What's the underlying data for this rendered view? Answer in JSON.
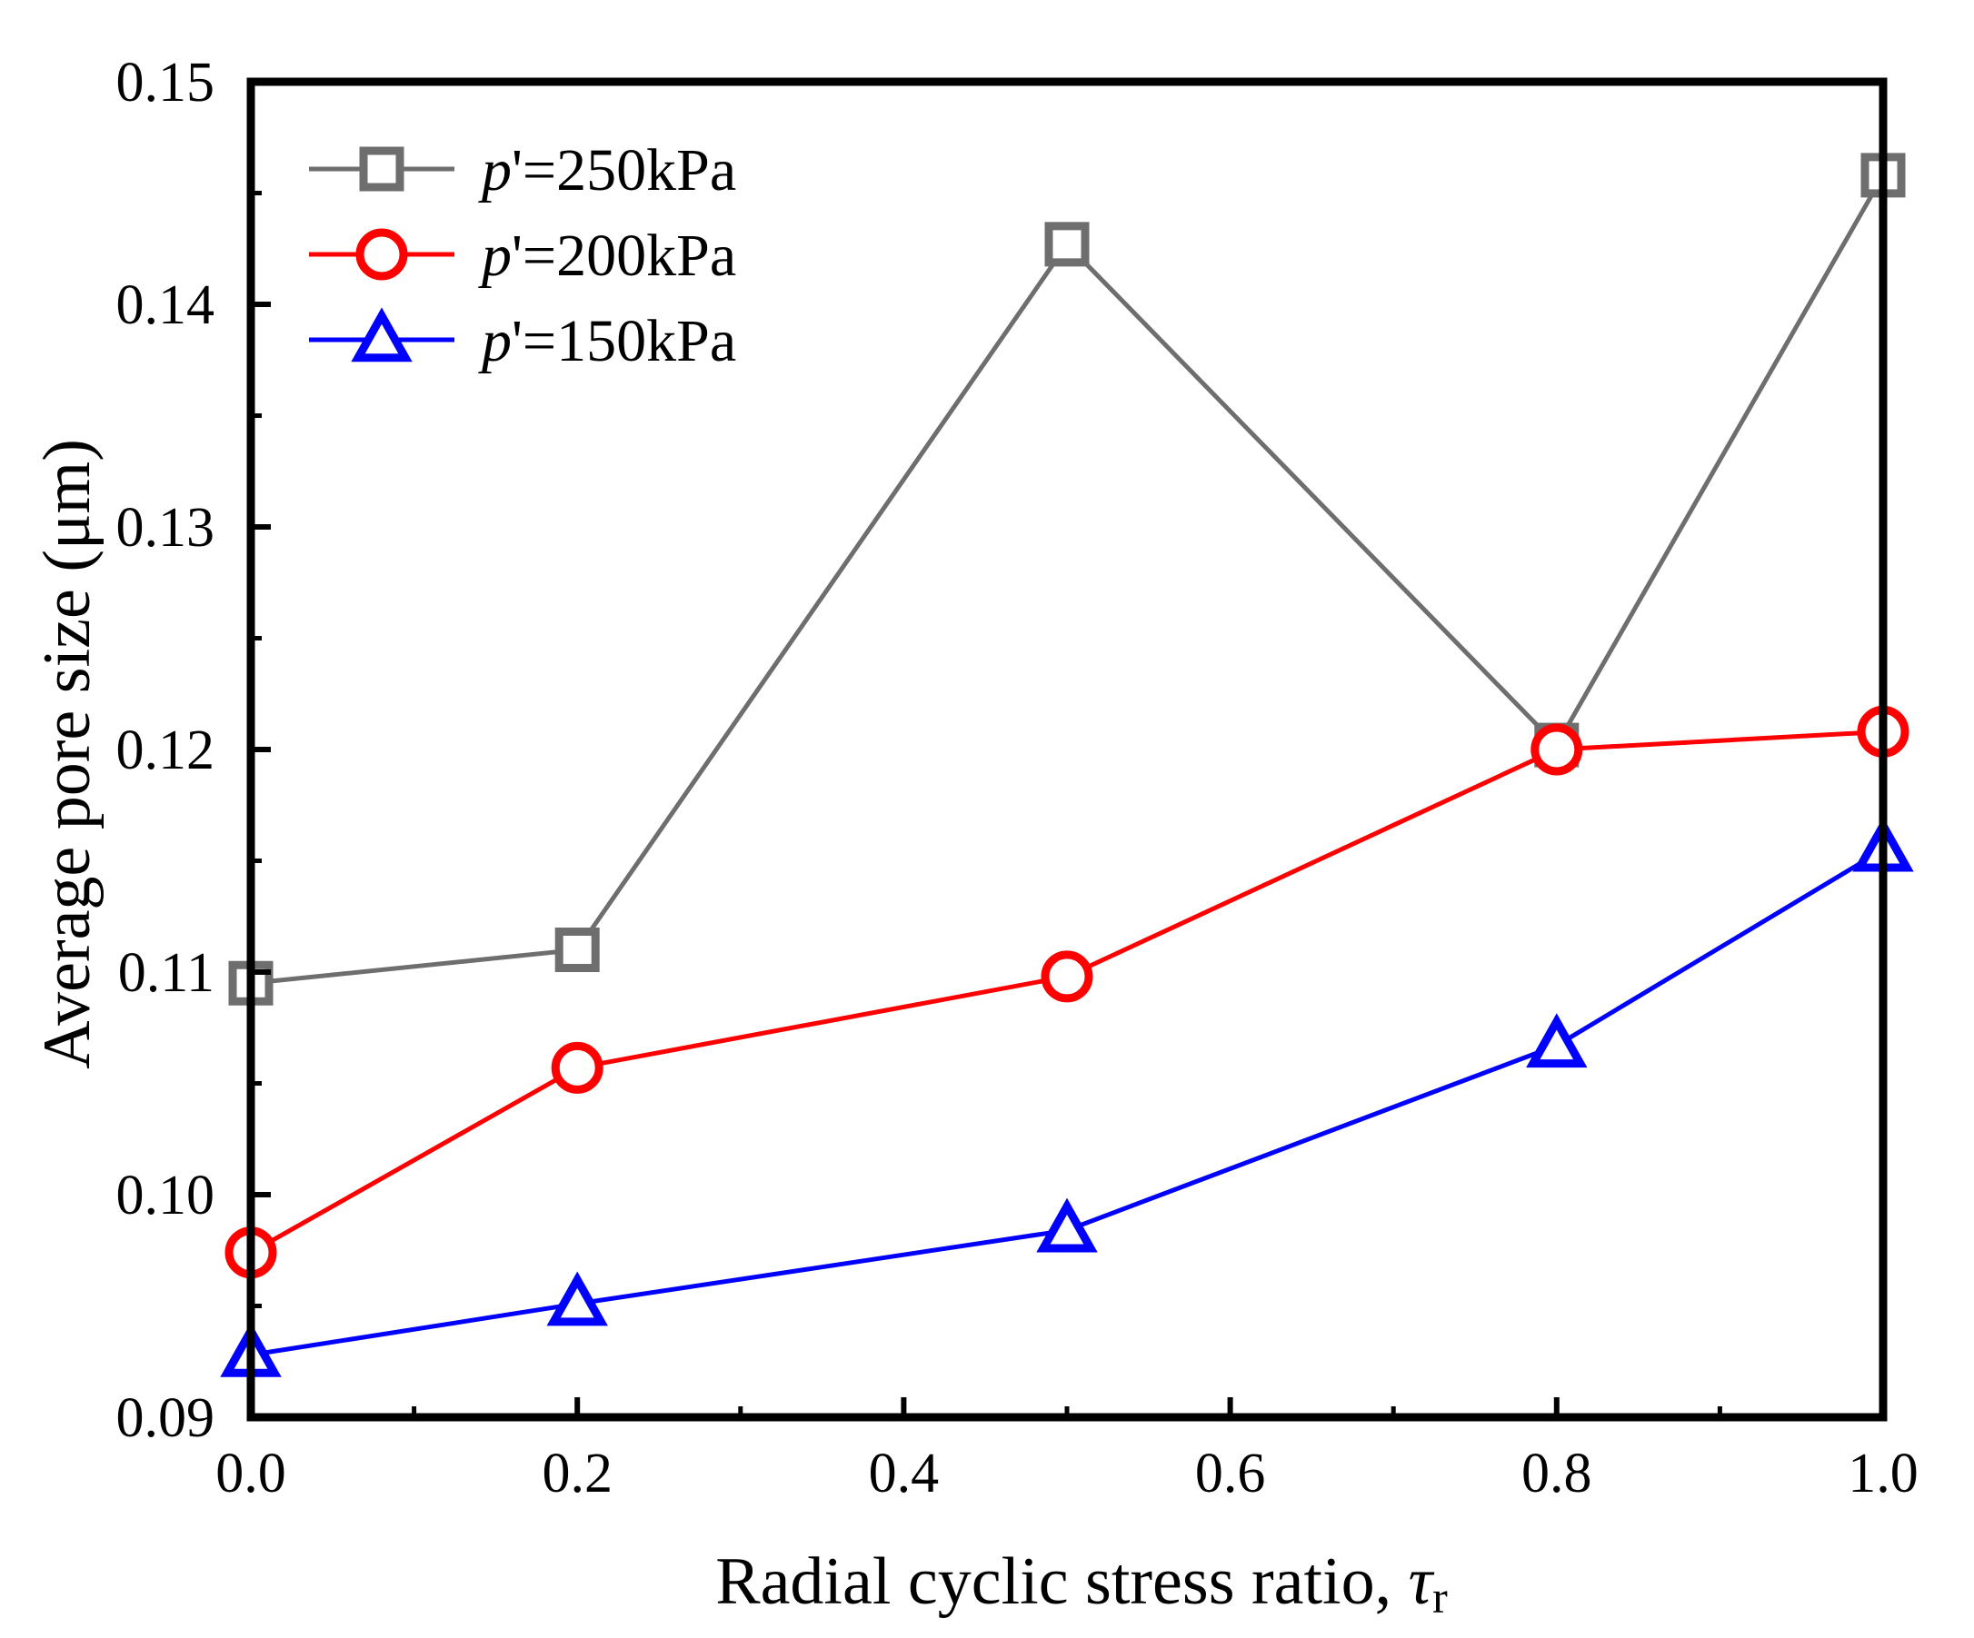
{
  "chart_data": {
    "type": "line",
    "title": "",
    "xlabel": "Radial cyclic stress ratio, ",
    "xlabel_symbol": "τ",
    "xlabel_subscript": "r",
    "ylabel": "Average pore size (μm)",
    "xlim": [
      0.0,
      1.0
    ],
    "ylim": [
      0.09,
      0.15
    ],
    "xticks": [
      "0.0",
      "0.2",
      "0.4",
      "0.6",
      "0.8",
      "1.0"
    ],
    "yticks": [
      "0.09",
      "0.10",
      "0.11",
      "0.12",
      "0.13",
      "0.14",
      "0.15"
    ],
    "grid": false,
    "legend_position": "top-left",
    "series": [
      {
        "name": "p'=250kPa",
        "legend_var": "p",
        "legend_rest": "'=250kPa",
        "marker": "square",
        "color": "#6e6e6e",
        "x": [
          0.0,
          0.2,
          0.5,
          0.8,
          1.0
        ],
        "y": [
          0.1095,
          0.111,
          0.1427,
          0.1202,
          0.1458
        ]
      },
      {
        "name": "p'=200kPa",
        "legend_var": "p",
        "legend_rest": "'=200kPa",
        "marker": "circle",
        "color": "#ff0000",
        "x": [
          0.0,
          0.2,
          0.5,
          0.8,
          1.0
        ],
        "y": [
          0.0974,
          0.1057,
          0.1098,
          0.12,
          0.1208
        ]
      },
      {
        "name": "p'=150kPa",
        "legend_var": "p",
        "legend_rest": "'=150kPa",
        "marker": "triangle",
        "color": "#0000ff",
        "x": [
          0.0,
          0.2,
          0.5,
          0.8,
          1.0
        ],
        "y": [
          0.0928,
          0.0951,
          0.0984,
          0.1067,
          0.1155
        ]
      }
    ]
  }
}
